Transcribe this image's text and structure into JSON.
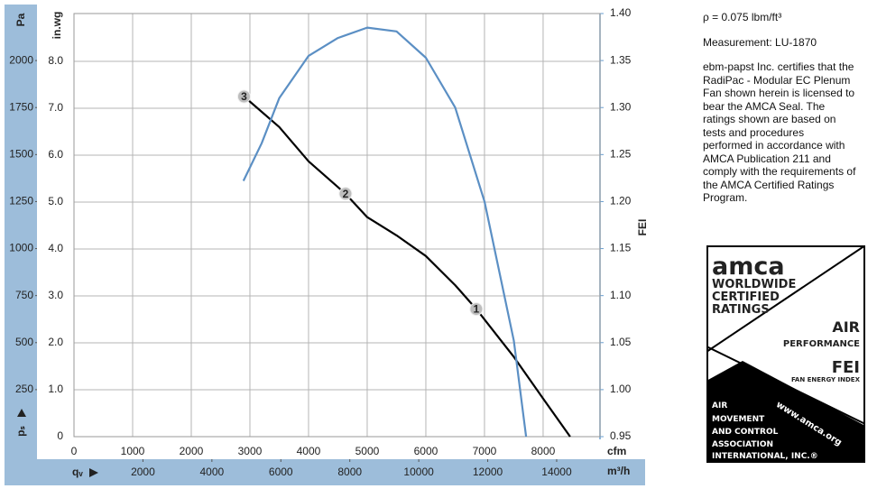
{
  "chart_data": {
    "type": "line",
    "x_label": "cfm",
    "x2_label": "m³/h",
    "x_axis_title": "qᵥ",
    "y_label": "in.wg",
    "y2_label": "FEI",
    "y3_label": "Pa",
    "y_axis_title": "pₛ",
    "xlim": [
      0,
      8970
    ],
    "xticks": [
      0,
      1000,
      2000,
      3000,
      4000,
      5000,
      6000,
      7000,
      8000
    ],
    "x2lim": [
      0,
      15257
    ],
    "x2ticks": [
      2000,
      4000,
      6000,
      8000,
      10000,
      12000,
      14000
    ],
    "ylim": [
      0,
      9.02
    ],
    "yticks": [
      0,
      {
        "value": 1,
        "label": "1.0"
      },
      {
        "value": 2,
        "label": "2.0"
      },
      {
        "value": 3,
        "label": "3.0"
      },
      {
        "value": 4,
        "label": "4.0"
      },
      {
        "value": 5,
        "label": "5.0"
      },
      {
        "value": 6,
        "label": "6.0"
      },
      {
        "value": 7,
        "label": "7.0"
      },
      {
        "value": 8,
        "label": "8.0"
      }
    ],
    "y2lim": [
      0.95,
      1.4
    ],
    "y2ticks": [
      0.95,
      {
        "value": 1,
        "label": "1.00"
      },
      1.05,
      {
        "value": 1.1,
        "label": "1.10"
      },
      1.15,
      {
        "value": 1.2,
        "label": "1.20"
      },
      1.25,
      {
        "value": 1.3,
        "label": "1.30"
      },
      1.35,
      {
        "value": 1.4,
        "label": "1.40"
      }
    ],
    "y3lim": [
      0,
      2250
    ],
    "y3ticks": [
      250,
      500,
      750,
      1000,
      1250,
      1500,
      1750,
      2000
    ],
    "grid": true,
    "series": [
      {
        "color": "#000000",
        "x": [
          2900,
          3500,
          4000,
          4630,
          5000,
          5500,
          6000,
          6500,
          6860,
          7500,
          8000,
          8460
        ],
        "values": [
          7.25,
          6.6,
          5.87,
          5.18,
          4.68,
          4.29,
          3.85,
          3.23,
          2.72,
          1.7,
          0.81,
          0
        ]
      },
      {
        "color": "#5b8fc4",
        "axis": "y2",
        "x": [
          2890,
          3200,
          3500,
          4000,
          4500,
          5000,
          5500,
          6000,
          6500,
          7000,
          7500,
          7710
        ],
        "values": [
          1.222,
          1.262,
          1.31,
          1.355,
          1.374,
          1.385,
          1.381,
          1.353,
          1.3,
          1.2,
          1.052,
          0.95
        ]
      }
    ],
    "markers": [
      {
        "label": "3",
        "x": 2900,
        "y": 7.25
      },
      {
        "label": "2",
        "x": 4630,
        "y": 5.18
      },
      {
        "label": "1",
        "x": 6860,
        "y": 2.72
      }
    ]
  },
  "side": {
    "density": "ρ = 0.075 lbm/ft³",
    "measurement": "Measurement: LU-1870",
    "statement": "ebm-papst Inc. certifies that the RadiPac - Modular EC Plenum Fan shown herein is licensed to bear the AMCA Seal. The ratings shown are based on tests and procedures performed in accordance with AMCA Publication 211 and comply with the requirements of the AMCA Certified Ratings Program."
  },
  "logo": {
    "brand": "amca",
    "line1": "WORLDWIDE",
    "line2": "CERTIFIED",
    "line3": "RATINGS",
    "air": "AIR",
    "performance": "PERFORMANCE",
    "fei": "FEI",
    "fei_full": "FAN ENERGY INDEX",
    "org1": "AIR",
    "org2": "MOVEMENT",
    "org3": "AND CONTROL",
    "org4": "ASSOCIATION",
    "org5": "INTERNATIONAL, INC.®",
    "url": "www.amca.org"
  }
}
